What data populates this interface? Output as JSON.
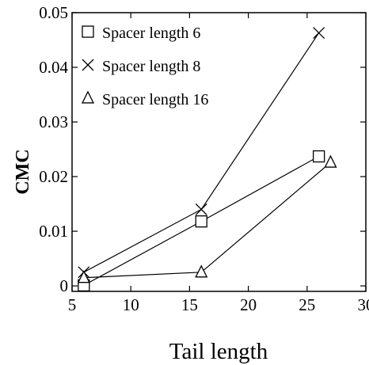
{
  "chart_data": {
    "type": "line",
    "xlabel": "Tail length",
    "ylabel": "CMC",
    "xlim": [
      5,
      30
    ],
    "ylim": [
      -0.001,
      0.05
    ],
    "xticks": [
      5,
      10,
      15,
      20,
      25,
      30
    ],
    "yticks": [
      0,
      0.01,
      0.02,
      0.03,
      0.04,
      0.05
    ],
    "xtick_labels": [
      "5",
      "10",
      "15",
      "20",
      "25",
      "30"
    ],
    "ytick_labels": [
      "0",
      "0.01",
      "0.02",
      "0.03",
      "0.04",
      "0.05"
    ],
    "grid": false,
    "legend_position": "top-left",
    "series": [
      {
        "name": "Spacer length 6",
        "marker": "square",
        "x": [
          6,
          16,
          26
        ],
        "y": [
          0.0001,
          0.0118,
          0.0237
        ]
      },
      {
        "name": "Spacer length 8",
        "marker": "x",
        "x": [
          6,
          16,
          26
        ],
        "y": [
          0.0025,
          0.014,
          0.0463
        ]
      },
      {
        "name": "Spacer length 16",
        "marker": "triangle",
        "x": [
          6,
          16,
          27
        ],
        "y": [
          0.0015,
          0.0025,
          0.0226
        ]
      }
    ]
  }
}
